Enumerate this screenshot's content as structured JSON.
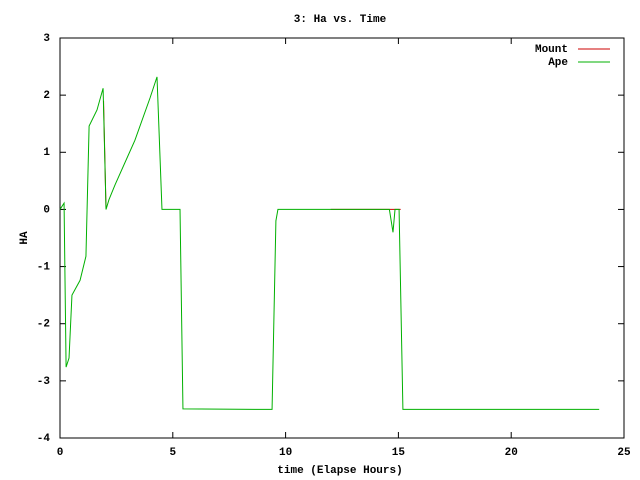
{
  "chart_data": {
    "type": "line",
    "title": "3: Ha vs. Time",
    "x_label": "time (Elapse Hours)",
    "y_label": "HA",
    "xlim": [
      0,
      25
    ],
    "xticks": [
      0,
      5,
      10,
      15,
      20,
      25
    ],
    "ylim": [
      -4,
      3
    ],
    "yticks": [
      -4,
      -3,
      -2,
      -1,
      0,
      1,
      2,
      3
    ],
    "legend": "top-right",
    "series": [
      {
        "name": "Mount",
        "color": "#cc0000",
        "x": [
          1.93,
          2.04,
          null,
          12,
          15.1
        ],
        "values": [
          1.9,
          0,
          null,
          0,
          0
        ]
      },
      {
        "name": "Ape",
        "color": "#00b000",
        "x": [
          0,
          0.18,
          0.27,
          0.4,
          0.53,
          0.89,
          1.15,
          1.29,
          1.64,
          1.91,
          2.04,
          2.17,
          2.44,
          3.32,
          3.99,
          4.3,
          4.52,
          5.32,
          5.45,
          9.4,
          9.57,
          9.66,
          14.6,
          14.76,
          14.85,
          15.03,
          15.2,
          23.9
        ],
        "values": [
          0,
          0.11,
          -2.76,
          -2.6,
          -1.5,
          -1.24,
          -0.82,
          1.46,
          1.74,
          2.12,
          0,
          0.17,
          0.43,
          1.21,
          1.95,
          2.32,
          0,
          0,
          -3.49,
          -3.5,
          -0.2,
          0,
          0,
          -0.4,
          0,
          0,
          -3.5,
          -3.5
        ]
      }
    ]
  }
}
